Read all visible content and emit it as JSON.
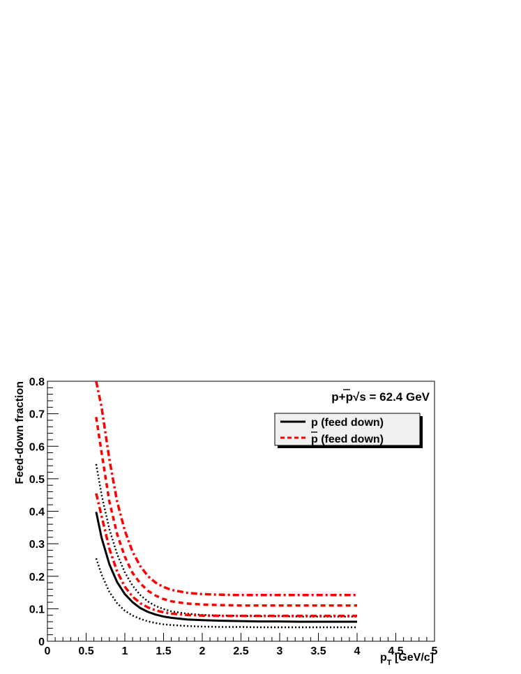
{
  "chart_data": {
    "type": "line",
    "title": "p+p√s = 62.4 GeV",
    "title_parts": {
      "prefix": "p+p",
      "sqrt_symbol": "√",
      "sqrt_arg": "s",
      "suffix": " = 62.4 GeV"
    },
    "xlabel": {
      "main": "p",
      "sub": "T",
      "rest": " [GeV/c]"
    },
    "ylabel": "Feed-down fraction",
    "xlim": [
      0,
      5
    ],
    "ylim": [
      0,
      0.8
    ],
    "xticks": [
      "0",
      "0.5",
      "1",
      "1.5",
      "2",
      "2.5",
      "3",
      "3.5",
      "4",
      "4.5",
      "5"
    ],
    "yticks": [
      "0",
      "0.1",
      "0.2",
      "0.3",
      "0.4",
      "0.5",
      "0.6",
      "0.7",
      "0.8"
    ],
    "grid": false,
    "legend": {
      "placement": "top-right",
      "entries": [
        {
          "label": "p (feed down)",
          "color": "#000000",
          "style": "solid"
        },
        {
          "label": "p̅ (feed down)",
          "label_parts": {
            "bar_char": "p",
            "rest": " (feed down)"
          },
          "color": "#ff0000",
          "style": "dashed"
        }
      ]
    },
    "x": [
      0.63,
      0.7,
      0.8,
      0.9,
      1.0,
      1.1,
      1.2,
      1.3,
      1.4,
      1.5,
      1.6,
      1.8,
      2.0,
      2.25,
      2.5,
      2.75,
      3.0,
      3.25,
      3.5,
      3.75,
      4.0
    ],
    "series": [
      {
        "role": "p-central",
        "color": "#000000",
        "style": "solid",
        "values": [
          0.398,
          0.318,
          0.237,
          0.182,
          0.145,
          0.12,
          0.102,
          0.09,
          0.082,
          0.076,
          0.072,
          0.067,
          0.065,
          0.063,
          0.062,
          0.061,
          0.061,
          0.06,
          0.06,
          0.06,
          0.06
        ]
      },
      {
        "role": "p-upper",
        "color": "#000000",
        "style": "dotted",
        "values": [
          0.545,
          0.45,
          0.345,
          0.268,
          0.212,
          0.171,
          0.142,
          0.122,
          0.108,
          0.099,
          0.092,
          0.085,
          0.081,
          0.079,
          0.078,
          0.077,
          0.077,
          0.076,
          0.076,
          0.076,
          0.076
        ]
      },
      {
        "role": "p-lower",
        "color": "#000000",
        "style": "dotted",
        "values": [
          0.255,
          0.205,
          0.152,
          0.117,
          0.094,
          0.079,
          0.069,
          0.061,
          0.056,
          0.052,
          0.05,
          0.047,
          0.045,
          0.044,
          0.044,
          0.043,
          0.043,
          0.043,
          0.043,
          0.043,
          0.043
        ]
      },
      {
        "role": "pbar-central",
        "color": "#ff0000",
        "style": "dashed",
        "values": [
          0.69,
          0.58,
          0.43,
          0.33,
          0.26,
          0.21,
          0.178,
          0.155,
          0.14,
          0.13,
          0.123,
          0.116,
          0.113,
          0.111,
          0.11,
          0.11,
          0.11,
          0.11,
          0.11,
          0.11,
          0.11
        ]
      },
      {
        "role": "pbar-upper",
        "color": "#ff0000",
        "style": "dashdot",
        "values": [
          0.8,
          0.72,
          0.56,
          0.43,
          0.34,
          0.275,
          0.231,
          0.2,
          0.18,
          0.167,
          0.158,
          0.149,
          0.145,
          0.143,
          0.142,
          0.142,
          0.142,
          0.142,
          0.142,
          0.142,
          0.142
        ]
      },
      {
        "role": "pbar-lower",
        "color": "#ff0000",
        "style": "dashdot",
        "values": [
          0.455,
          0.385,
          0.285,
          0.215,
          0.168,
          0.137,
          0.117,
          0.104,
          0.095,
          0.089,
          0.085,
          0.081,
          0.079,
          0.078,
          0.078,
          0.078,
          0.078,
          0.078,
          0.078,
          0.078,
          0.078
        ]
      }
    ]
  }
}
